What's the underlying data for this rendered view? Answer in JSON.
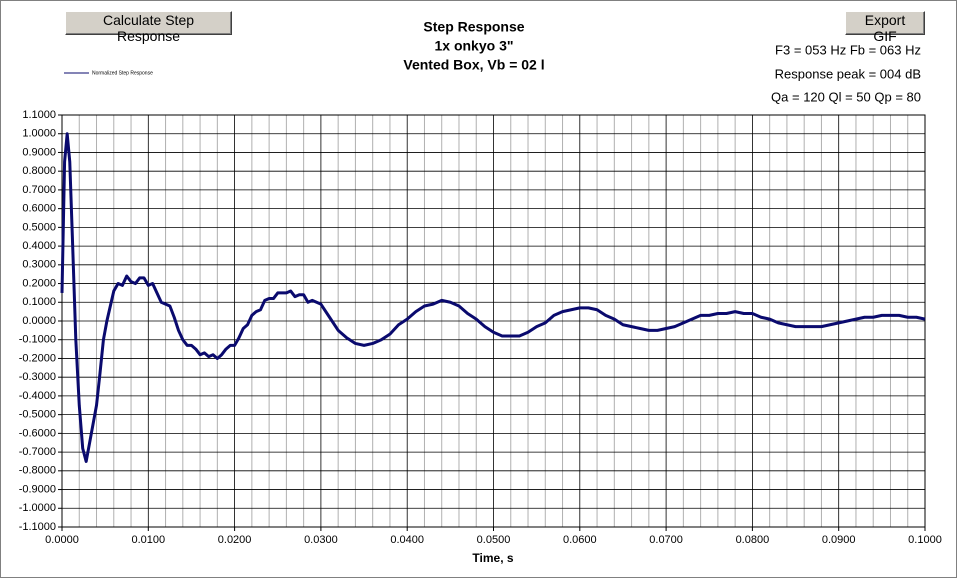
{
  "buttons": {
    "calculate": "Calculate Step Response",
    "export": "Export GIF"
  },
  "info": [
    "F3 = 053 Hz  Fb = 063 Hz",
    "Response peak = 004 dB",
    "Qa = 120  Ql = 50  Qp = 80"
  ],
  "chart_data": {
    "type": "line",
    "title": [
      "Step Response",
      "1x onkyo 3\"",
      "Vented Box, Vb = 02 l"
    ],
    "x_label": "Time, s",
    "grid": true,
    "legend": "top-left",
    "xlim": [
      0,
      0.1
    ],
    "ylim": [
      -1.1,
      1.1
    ],
    "xticks": [
      {
        "value": 0,
        "label": "0.0000"
      },
      {
        "value": 0.01,
        "label": "0.0100"
      },
      {
        "value": 0.02,
        "label": "0.0200"
      },
      {
        "value": 0.03,
        "label": "0.0300"
      },
      {
        "value": 0.04,
        "label": "0.0400"
      },
      {
        "value": 0.05,
        "label": "0.0500"
      },
      {
        "value": 0.06,
        "label": "0.0600"
      },
      {
        "value": 0.07,
        "label": "0.0700"
      },
      {
        "value": 0.08,
        "label": "0.0800"
      },
      {
        "value": 0.09,
        "label": "0.0900"
      },
      {
        "value": 0.1,
        "label": "0.1000"
      }
    ],
    "yticks": [
      {
        "value": -1.1,
        "label": "-1.1000"
      },
      {
        "value": -1.0,
        "label": "-1.0000"
      },
      {
        "value": -0.9,
        "label": "-0.9000"
      },
      {
        "value": -0.8,
        "label": "-0.8000"
      },
      {
        "value": -0.7,
        "label": "-0.7000"
      },
      {
        "value": -0.6,
        "label": "-0.6000"
      },
      {
        "value": -0.5,
        "label": "-0.5000"
      },
      {
        "value": -0.4,
        "label": "-0.4000"
      },
      {
        "value": -0.3,
        "label": "-0.3000"
      },
      {
        "value": -0.2,
        "label": "-0.2000"
      },
      {
        "value": -0.1,
        "label": "-0.1000"
      },
      {
        "value": 0,
        "label": "0.0000"
      },
      {
        "value": 0.1,
        "label": "0.1000"
      },
      {
        "value": 0.2,
        "label": "0.2000"
      },
      {
        "value": 0.3,
        "label": "0.3000"
      },
      {
        "value": 0.4,
        "label": "0.4000"
      },
      {
        "value": 0.5,
        "label": "0.5000"
      },
      {
        "value": 0.6,
        "label": "0.6000"
      },
      {
        "value": 0.7,
        "label": "0.7000"
      },
      {
        "value": 0.8,
        "label": "0.8000"
      },
      {
        "value": 0.9,
        "label": "0.9000"
      },
      {
        "value": 1.0,
        "label": "1.0000"
      },
      {
        "value": 1.1,
        "label": "1.1000"
      }
    ],
    "x": [
      0,
      0.0003,
      0.0006,
      0.0009,
      0.0012,
      0.0016,
      0.002,
      0.0024,
      0.0028,
      0.0032,
      0.0036,
      0.004,
      0.0044,
      0.0048,
      0.0052,
      0.0056,
      0.006,
      0.0065,
      0.007,
      0.0075,
      0.008,
      0.0085,
      0.009,
      0.0095,
      0.01,
      0.0105,
      0.011,
      0.0115,
      0.012,
      0.0125,
      0.013,
      0.0135,
      0.014,
      0.0145,
      0.015,
      0.0155,
      0.016,
      0.0165,
      0.017,
      0.0175,
      0.018,
      0.0185,
      0.019,
      0.0195,
      0.02,
      0.0205,
      0.021,
      0.0215,
      0.022,
      0.0225,
      0.023,
      0.0235,
      0.024,
      0.0245,
      0.025,
      0.0255,
      0.026,
      0.0265,
      0.027,
      0.0275,
      0.028,
      0.0285,
      0.029,
      0.0295,
      0.03,
      0.031,
      0.032,
      0.033,
      0.034,
      0.035,
      0.036,
      0.037,
      0.038,
      0.039,
      0.04,
      0.041,
      0.042,
      0.043,
      0.044,
      0.045,
      0.046,
      0.047,
      0.048,
      0.049,
      0.05,
      0.051,
      0.052,
      0.053,
      0.054,
      0.055,
      0.056,
      0.057,
      0.058,
      0.059,
      0.06,
      0.061,
      0.062,
      0.063,
      0.064,
      0.065,
      0.066,
      0.067,
      0.068,
      0.069,
      0.07,
      0.071,
      0.072,
      0.073,
      0.074,
      0.075,
      0.076,
      0.077,
      0.078,
      0.079,
      0.08,
      0.081,
      0.082,
      0.083,
      0.084,
      0.085,
      0.086,
      0.087,
      0.088,
      0.089,
      0.09,
      0.091,
      0.092,
      0.093,
      0.094,
      0.095,
      0.096,
      0.097,
      0.098,
      0.099,
      0.1
    ],
    "series": [
      {
        "name": "Normalized Step Response",
        "color": "#0a0a6e",
        "values": [
          0.15,
          0.85,
          1.0,
          0.85,
          0.45,
          -0.1,
          -0.45,
          -0.68,
          -0.75,
          -0.65,
          -0.55,
          -0.45,
          -0.28,
          -0.1,
          0.0,
          0.08,
          0.16,
          0.2,
          0.19,
          0.24,
          0.21,
          0.2,
          0.23,
          0.23,
          0.19,
          0.2,
          0.15,
          0.1,
          0.09,
          0.08,
          0.02,
          -0.05,
          -0.1,
          -0.13,
          -0.13,
          -0.15,
          -0.18,
          -0.17,
          -0.19,
          -0.18,
          -0.2,
          -0.18,
          -0.15,
          -0.13,
          -0.13,
          -0.09,
          -0.04,
          -0.02,
          0.03,
          0.05,
          0.06,
          0.11,
          0.12,
          0.12,
          0.15,
          0.15,
          0.15,
          0.16,
          0.13,
          0.14,
          0.14,
          0.1,
          0.11,
          0.1,
          0.09,
          0.02,
          -0.05,
          -0.09,
          -0.12,
          -0.13,
          -0.12,
          -0.1,
          -0.07,
          -0.02,
          0.01,
          0.05,
          0.08,
          0.09,
          0.11,
          0.1,
          0.08,
          0.04,
          0.01,
          -0.03,
          -0.06,
          -0.08,
          -0.08,
          -0.08,
          -0.06,
          -0.03,
          -0.01,
          0.03,
          0.05,
          0.06,
          0.07,
          0.07,
          0.06,
          0.03,
          0.01,
          -0.02,
          -0.03,
          -0.04,
          -0.05,
          -0.05,
          -0.04,
          -0.03,
          -0.01,
          0.01,
          0.03,
          0.03,
          0.04,
          0.04,
          0.05,
          0.04,
          0.04,
          0.02,
          0.01,
          -0.01,
          -0.02,
          -0.03,
          -0.03,
          -0.03,
          -0.03,
          -0.02,
          -0.01,
          0.0,
          0.01,
          0.02,
          0.02,
          0.03,
          0.03,
          0.03,
          0.02,
          0.02,
          0.01
        ]
      }
    ]
  }
}
